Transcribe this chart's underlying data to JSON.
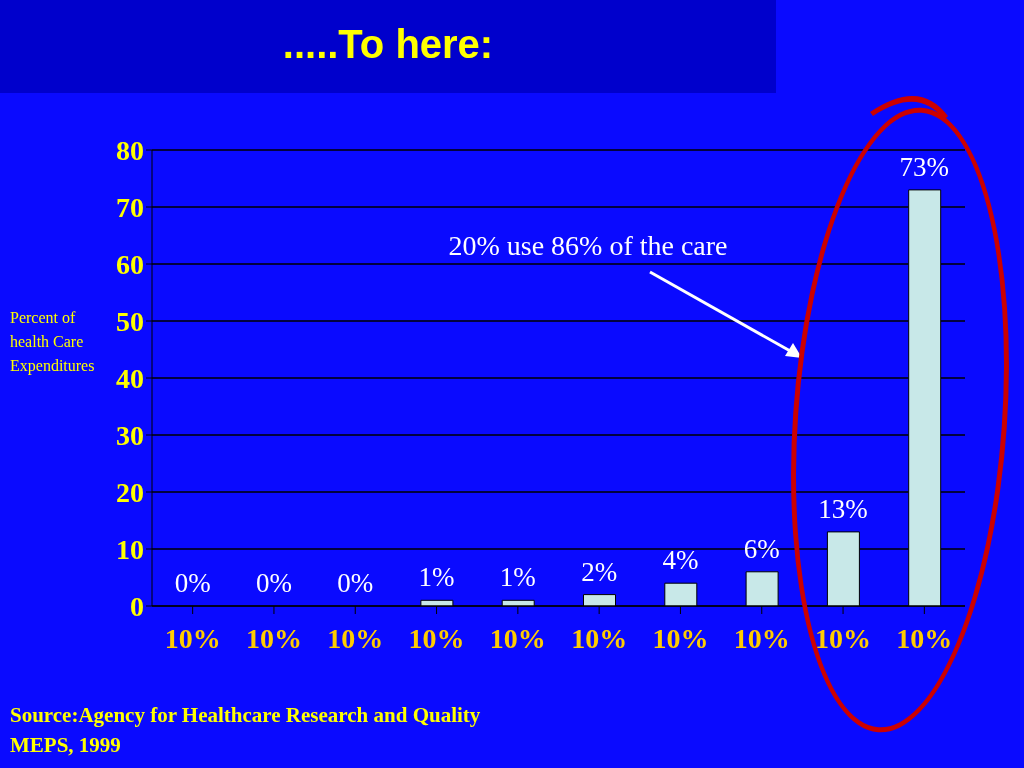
{
  "chart_data": {
    "type": "bar",
    "title": ".....To here:",
    "ylabel": "Percent of health Care Expenditures",
    "categories": [
      "10%",
      "10%",
      "10%",
      "10%",
      "10%",
      "10%",
      "10%",
      "10%",
      "10%",
      "10%"
    ],
    "values": [
      0,
      0,
      0,
      1,
      1,
      2,
      4,
      6,
      13,
      73
    ],
    "value_labels": [
      "0%",
      "0%",
      "0%",
      "1%",
      "1%",
      "2%",
      "4%",
      "6%",
      "13%",
      "73%"
    ],
    "color": "#c8e8e8",
    "ylim": [
      0,
      80
    ],
    "yticks": [
      0,
      10,
      20,
      30,
      40,
      50,
      60,
      70,
      80
    ],
    "grid": "y",
    "annotations": [
      "20% use 86% of the care",
      "Source:Agency for Healthcare Research and Quality",
      "MEPS, 1999"
    ]
  }
}
